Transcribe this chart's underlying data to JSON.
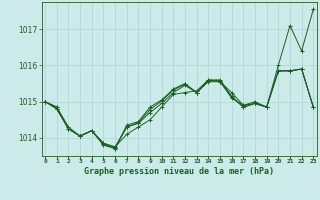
{
  "title": "Graphe pression niveau de la mer (hPa)",
  "hours": [
    0,
    1,
    2,
    3,
    4,
    5,
    6,
    7,
    8,
    9,
    10,
    11,
    12,
    13,
    14,
    15,
    16,
    17,
    18,
    19,
    20,
    21,
    22,
    23
  ],
  "ylim": [
    1013.5,
    1017.75
  ],
  "yticks": [
    1014,
    1015,
    1016,
    1017
  ],
  "background_color": "#cceaea",
  "grid_color": "#aad4d4",
  "line_color": "#1a6020",
  "series": [
    [
      1015.0,
      1014.85,
      1014.3,
      1014.05,
      1014.2,
      1013.85,
      1013.75,
      1014.1,
      1014.3,
      1014.5,
      1014.85,
      1015.2,
      1015.25,
      1015.3,
      1015.6,
      1015.55,
      1015.25,
      1014.9,
      1015.0,
      1014.85,
      1016.0,
      1017.1,
      1016.4,
      1017.55
    ],
    [
      1015.0,
      1014.85,
      1014.25,
      1014.05,
      1014.2,
      1013.85,
      1013.75,
      1014.3,
      1014.4,
      1014.7,
      1014.95,
      1015.25,
      1015.45,
      1015.25,
      1015.55,
      1015.55,
      1015.1,
      1014.9,
      1014.95,
      1014.85,
      1015.85,
      1015.85,
      1015.9,
      1014.85
    ],
    [
      1015.0,
      1014.8,
      1014.25,
      1014.05,
      1014.2,
      1013.8,
      1013.7,
      1014.35,
      1014.45,
      1014.85,
      1015.05,
      1015.35,
      1015.5,
      1015.25,
      1015.6,
      1015.6,
      1015.15,
      1014.85,
      1014.95,
      1014.85,
      1015.85,
      1015.85,
      1015.9,
      1014.85
    ],
    [
      1015.0,
      1014.8,
      1014.25,
      1014.05,
      1014.2,
      1013.82,
      1013.72,
      1014.3,
      1014.42,
      1014.78,
      1015.02,
      1015.32,
      1015.48,
      1015.25,
      1015.58,
      1015.58,
      1015.12,
      1014.85,
      1014.95,
      1014.85,
      1015.85,
      1015.85,
      1015.9,
      1014.85
    ]
  ]
}
